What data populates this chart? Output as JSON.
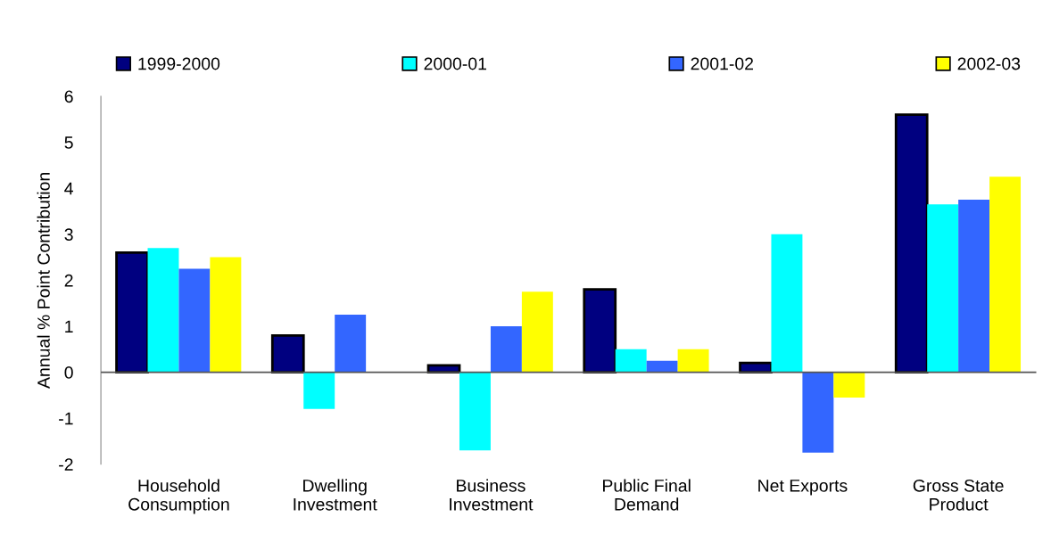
{
  "chart_data": {
    "type": "bar",
    "ylabel": "Annual % Point Contribution",
    "categories": [
      "Household\nConsumption",
      "Dwelling\nInvestment",
      "Business\nInvestment",
      "Public Final\nDemand",
      "Net Exports",
      "Gross State\nProduct"
    ],
    "series": [
      {
        "name": "1999-2000",
        "color": "#000080",
        "values": [
          2.6,
          0.8,
          0.15,
          1.8,
          0.2,
          5.6
        ]
      },
      {
        "name": "2000-01",
        "color": "#00ffff",
        "values": [
          2.7,
          -0.8,
          -1.7,
          0.5,
          3.0,
          3.65
        ]
      },
      {
        "name": "2001-02",
        "color": "#3366ff",
        "values": [
          2.25,
          1.25,
          1.0,
          0.25,
          -1.75,
          3.75
        ]
      },
      {
        "name": "2002-03",
        "color": "#ffff00",
        "values": [
          2.5,
          0,
          1.75,
          0.5,
          -0.55,
          4.25
        ]
      }
    ],
    "ylim": [
      -2,
      6
    ],
    "yticks": [
      -2,
      -1,
      0,
      1,
      2,
      3,
      4,
      5,
      6
    ],
    "ref_lines": [
      {
        "axis": "y",
        "value": 0,
        "color": "#555555"
      }
    ],
    "grid": false,
    "legend": "top"
  }
}
